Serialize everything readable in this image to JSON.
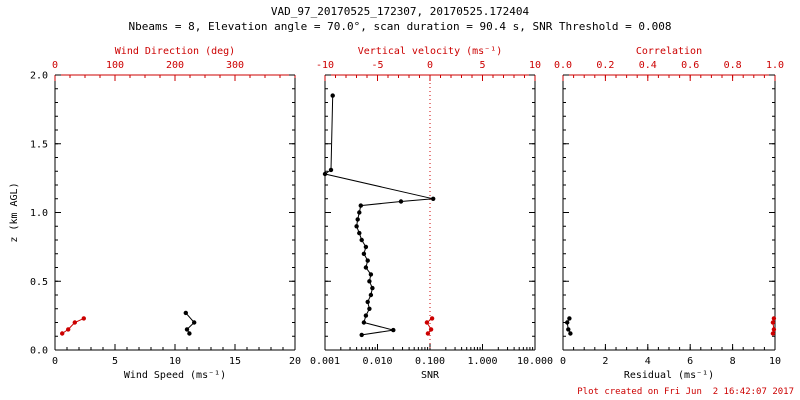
{
  "title": "VAD_97_20170525_172307, 20170525.172404",
  "subtitle": "Nbeams = 8, Elevation angle = 70.0°, scan duration = 90.4 s, SNR Threshold = 0.008",
  "footer": "Plot created on Fri Jun  2 16:42:07 2017",
  "colors": {
    "black": "#000000",
    "red": "#cc0000"
  },
  "chart_data": [
    {
      "type": "scatter",
      "name": "wind-speed-direction",
      "ylabel": "z (km AGL)",
      "ylim": [
        0,
        2
      ],
      "yticks": [
        0,
        0.5,
        1,
        1.5,
        2
      ],
      "ytick_labels": [
        "0.0",
        "0.5",
        "1.0",
        "1.5",
        "2.0"
      ],
      "yminor": 0.1,
      "bottom_axis": {
        "label": "Wind Speed (ms⁻¹)",
        "lim": [
          0,
          20
        ],
        "ticks": [
          0,
          5,
          10,
          15,
          20
        ],
        "tick_labels": [
          "0",
          "5",
          "10",
          "15",
          "20"
        ],
        "minor": 1
      },
      "top_axis": {
        "label": "Wind Direction (deg)",
        "lim": [
          0,
          400
        ],
        "ticks": [
          0,
          100,
          200,
          300
        ],
        "tick_labels": [
          "0",
          "100",
          "200",
          "300"
        ],
        "minor": 25
      },
      "series": [
        {
          "name": "wind_speed",
          "axis": "bottom",
          "color": "black",
          "points": [
            [
              11.2,
              0.12
            ],
            [
              11.0,
              0.15
            ],
            [
              11.6,
              0.2
            ],
            [
              10.9,
              0.27
            ]
          ]
        },
        {
          "name": "wind_direction",
          "axis": "top",
          "color": "red",
          "points": [
            [
              12,
              0.12
            ],
            [
              22,
              0.15
            ],
            [
              33,
              0.2
            ],
            [
              48,
              0.23
            ]
          ]
        }
      ]
    },
    {
      "type": "scatter",
      "name": "snr-vertical-velocity",
      "ylim": [
        0,
        2
      ],
      "yticks": [
        0,
        0.5,
        1,
        1.5,
        2
      ],
      "yminor": 0.1,
      "bottom_axis": {
        "label": "SNR",
        "scale": "log",
        "lim": [
          0.001,
          10
        ],
        "ticks": [
          0.001,
          0.01,
          0.1,
          1,
          10
        ],
        "tick_labels": [
          "0.001",
          "0.010",
          "0.100",
          "1.000",
          "10.000"
        ]
      },
      "top_axis": {
        "label": "Vertical velocity (ms⁻¹)",
        "lim": [
          -10,
          10
        ],
        "ticks": [
          -10,
          -5,
          0,
          5,
          10
        ],
        "tick_labels": [
          "-10",
          "-5",
          "0",
          "5",
          "10"
        ],
        "minor": 1
      },
      "ref_line": {
        "axis": "top",
        "value": 0,
        "color": "red",
        "style": "dotted"
      },
      "series": [
        {
          "name": "snr_profile",
          "axis": "bottom",
          "color": "black",
          "points": [
            [
              0.005,
              0.11
            ],
            [
              0.02,
              0.145
            ],
            [
              0.0055,
              0.2
            ],
            [
              0.006,
              0.25
            ],
            [
              0.007,
              0.3
            ],
            [
              0.0065,
              0.35
            ],
            [
              0.0075,
              0.4
            ],
            [
              0.008,
              0.45
            ],
            [
              0.007,
              0.5
            ],
            [
              0.0075,
              0.55
            ],
            [
              0.006,
              0.6
            ],
            [
              0.0065,
              0.65
            ],
            [
              0.0055,
              0.7
            ],
            [
              0.006,
              0.75
            ],
            [
              0.005,
              0.8
            ],
            [
              0.0045,
              0.85
            ],
            [
              0.004,
              0.9
            ],
            [
              0.0042,
              0.95
            ],
            [
              0.0045,
              1.0
            ],
            [
              0.0048,
              1.05
            ],
            [
              0.028,
              1.08
            ],
            [
              0.115,
              1.1
            ],
            [
              0.001,
              1.28
            ],
            [
              0.0013,
              1.31
            ],
            [
              0.0014,
              1.85
            ]
          ]
        },
        {
          "name": "vertical_velocity",
          "axis": "top",
          "color": "red",
          "points": [
            [
              -0.2,
              0.12
            ],
            [
              0.1,
              0.15
            ],
            [
              -0.3,
              0.2
            ],
            [
              0.2,
              0.23
            ]
          ]
        }
      ]
    },
    {
      "type": "scatter",
      "name": "residual-correlation",
      "ylim": [
        0,
        2
      ],
      "yticks": [
        0,
        0.5,
        1,
        1.5,
        2
      ],
      "yminor": 0.1,
      "bottom_axis": {
        "label": "Residual (ms⁻¹)",
        "lim": [
          0,
          10
        ],
        "ticks": [
          0,
          2,
          4,
          6,
          8,
          10
        ],
        "tick_labels": [
          "0",
          "2",
          "4",
          "6",
          "8",
          "10"
        ],
        "minor": 0.5
      },
      "top_axis": {
        "label": "Correlation",
        "lim": [
          0,
          1
        ],
        "ticks": [
          0,
          0.2,
          0.4,
          0.6,
          0.8,
          1
        ],
        "tick_labels": [
          "0.0",
          "0.2",
          "0.4",
          "0.6",
          "0.8",
          "1.0"
        ],
        "minor": 0.05
      },
      "series": [
        {
          "name": "residual",
          "axis": "bottom",
          "color": "black",
          "points": [
            [
              0.35,
              0.12
            ],
            [
              0.25,
              0.15
            ],
            [
              0.2,
              0.2
            ],
            [
              0.3,
              0.23
            ]
          ]
        },
        {
          "name": "correlation",
          "axis": "top",
          "color": "red",
          "points": [
            [
              0.99,
              0.12
            ],
            [
              0.995,
              0.15
            ],
            [
              0.99,
              0.2
            ],
            [
              0.995,
              0.23
            ]
          ]
        }
      ]
    }
  ]
}
